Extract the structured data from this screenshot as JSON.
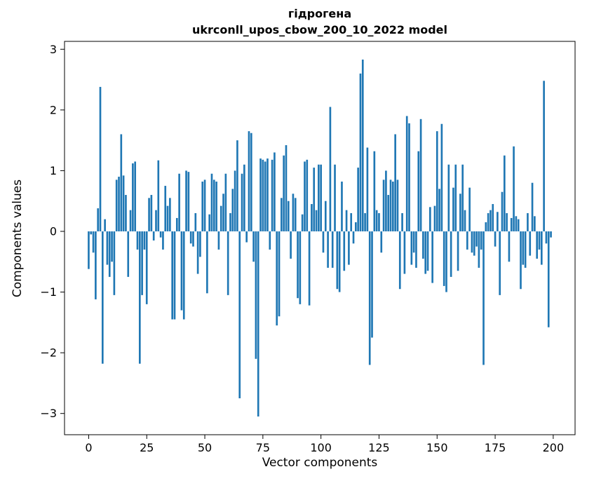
{
  "chart_data": {
    "type": "bar",
    "title_lines": [
      "гідрогена",
      "ukrconll_upos_cbow_200_10_2022 model"
    ],
    "xlabel": "Vector components",
    "ylabel": "Components values",
    "bar_color": "#1f77b4",
    "background": "#ffffff",
    "grid": false,
    "legend": "none",
    "xlim": [
      -10.4,
      209.4
    ],
    "ylim": [
      -3.35,
      3.13
    ],
    "xticks": [
      0,
      25,
      50,
      75,
      100,
      125,
      150,
      175,
      200
    ],
    "yticks": [
      3,
      2,
      1,
      0,
      -1,
      -2,
      -3
    ],
    "ytick_labels": [
      "3",
      "2",
      "1",
      "0",
      "−1",
      "−2",
      "−3"
    ],
    "n_components": 200,
    "values": [
      -0.62,
      -0.05,
      -0.35,
      -1.12,
      0.38,
      2.38,
      -2.18,
      0.2,
      -0.55,
      -0.75,
      -0.5,
      -1.05,
      0.85,
      0.9,
      1.6,
      0.92,
      0.6,
      -0.75,
      0.35,
      1.12,
      1.15,
      -0.3,
      -2.18,
      -1.05,
      -0.3,
      -1.2,
      0.55,
      0.6,
      -0.15,
      0.35,
      1.17,
      -0.1,
      -0.3,
      0.75,
      0.42,
      0.55,
      -1.45,
      -1.45,
      0.22,
      0.95,
      -1.3,
      -1.45,
      1.0,
      0.98,
      -0.2,
      -0.25,
      0.3,
      -0.7,
      -0.42,
      0.82,
      0.85,
      -1.02,
      0.28,
      0.95,
      0.85,
      0.82,
      -0.3,
      0.42,
      0.62,
      0.95,
      -1.05,
      0.3,
      0.7,
      1.0,
      1.5,
      -2.75,
      0.95,
      1.1,
      -0.18,
      1.65,
      1.62,
      -0.5,
      -2.1,
      -3.05,
      1.2,
      1.18,
      1.15,
      1.2,
      -0.3,
      1.18,
      1.3,
      -1.55,
      -1.4,
      0.55,
      1.25,
      1.42,
      0.5,
      -0.45,
      0.62,
      0.55,
      -1.1,
      -1.2,
      0.28,
      1.15,
      1.18,
      -1.22,
      0.45,
      1.05,
      0.35,
      1.1,
      1.1,
      -0.35,
      0.5,
      -0.6,
      2.05,
      -0.6,
      1.1,
      -0.95,
      -1.0,
      0.82,
      -0.65,
      0.35,
      -0.55,
      0.3,
      -0.2,
      0.15,
      1.05,
      2.6,
      2.83,
      0.3,
      1.38,
      -2.2,
      -1.75,
      1.32,
      0.35,
      0.3,
      -0.35,
      0.85,
      1.0,
      0.6,
      0.85,
      0.82,
      1.6,
      0.85,
      -0.95,
      0.3,
      -0.7,
      1.9,
      1.78,
      -0.55,
      -0.35,
      -0.6,
      1.32,
      1.85,
      -0.45,
      -0.7,
      -0.65,
      0.4,
      -0.85,
      0.42,
      1.65,
      0.7,
      1.77,
      -0.9,
      -1.0,
      1.1,
      -0.75,
      0.72,
      1.1,
      -0.65,
      0.62,
      1.1,
      0.35,
      -0.3,
      0.72,
      -0.35,
      -0.4,
      -0.25,
      -0.6,
      -0.3,
      -2.2,
      0.15,
      0.3,
      0.35,
      0.45,
      -0.25,
      0.32,
      -1.05,
      0.65,
      1.25,
      0.3,
      -0.5,
      0.22,
      1.4,
      0.25,
      0.2,
      -0.95,
      -0.55,
      -0.6,
      0.3,
      -0.4,
      0.8,
      0.25,
      -0.45,
      -0.3,
      -0.55,
      2.48,
      -0.2,
      -1.58,
      -0.1
    ]
  }
}
